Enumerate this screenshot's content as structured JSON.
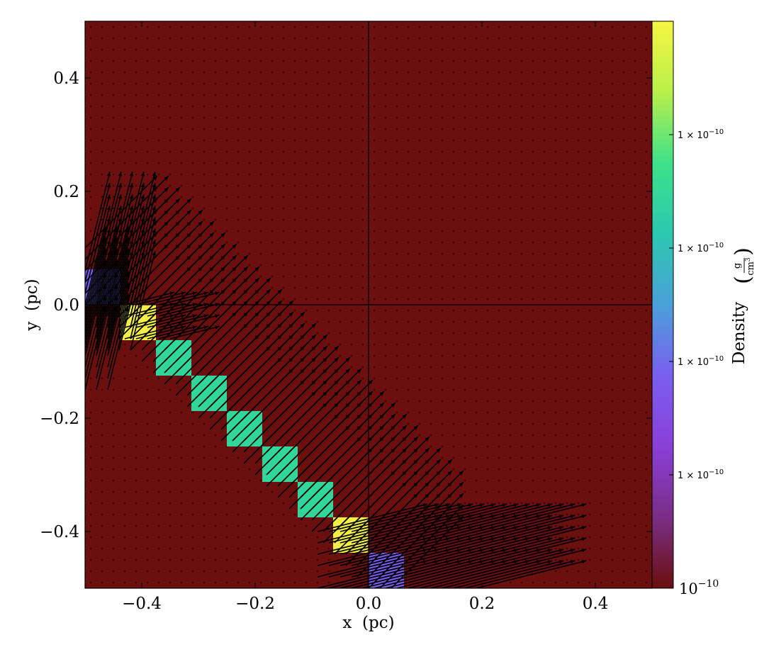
{
  "chart_data": {
    "type": "heatmap",
    "title": "",
    "xlabel": "x  (pc)",
    "ylabel": "y  (pc)",
    "xlim": [
      -0.5,
      0.5
    ],
    "ylim": [
      -0.5,
      0.5
    ],
    "x_ticks": [
      -0.4,
      -0.2,
      0.0,
      0.2,
      0.4
    ],
    "y_ticks": [
      -0.4,
      -0.2,
      0.0,
      0.2,
      0.4
    ],
    "x_tick_labels": [
      "−0.4",
      "−0.2",
      "0.0",
      "0.2",
      "0.4"
    ],
    "y_tick_labels": [
      "−0.4",
      "−0.2",
      "0.0",
      "0.2",
      "0.4"
    ],
    "grid": false,
    "crosshair_lines": [
      {
        "axis": "x",
        "value": 0.0
      },
      {
        "axis": "y",
        "value": 0.0
      }
    ],
    "background_color": "#6b0f0f",
    "colorbar": {
      "label": "Density",
      "units_numerator": "g",
      "units_denominator": "cm",
      "units_exponent": "3",
      "scale": "log",
      "min_label_base": "10",
      "min_label_exp": "−10",
      "tick_labels": [
        "1 × 10",
        "1 × 10",
        "1 × 10",
        "1 × 10"
      ],
      "tick_label_exp": "−10",
      "tick_fractions": [
        0.2,
        0.4,
        0.6,
        0.8
      ],
      "colors": [
        "#6b0f0f",
        "#7a2e86",
        "#8a3fd8",
        "#7a5ff0",
        "#4aa0d8",
        "#2cc8b0",
        "#3fe08a",
        "#b8f04a",
        "#f7f542"
      ]
    },
    "cell_size": 0.0625,
    "cells": [
      {
        "x": -0.5,
        "y": 0.0,
        "value_level": "low",
        "color": "#7b5cf0"
      },
      {
        "x": -0.4375,
        "y": -0.0625,
        "value_level": "high",
        "color": "#f4ef47"
      },
      {
        "x": -0.375,
        "y": -0.125,
        "value_level": "mid",
        "color": "#32d69c"
      },
      {
        "x": -0.3125,
        "y": -0.1875,
        "value_level": "mid",
        "color": "#32d69c"
      },
      {
        "x": -0.25,
        "y": -0.25,
        "value_level": "mid",
        "color": "#32d69c"
      },
      {
        "x": -0.1875,
        "y": -0.3125,
        "value_level": "mid",
        "color": "#32d69c"
      },
      {
        "x": -0.125,
        "y": -0.375,
        "value_level": "mid",
        "color": "#32d69c"
      },
      {
        "x": -0.0625,
        "y": -0.4375,
        "value_level": "high",
        "color": "#f4ef47"
      },
      {
        "x": 0.0,
        "y": -0.5,
        "value_level": "low",
        "color": "#7b5cf0"
      }
    ],
    "vector_field": {
      "type": "quiver",
      "color": "#000000",
      "background_dot_spacing": 0.02,
      "bands": [
        {
          "x_range": [
            -0.5,
            -0.42
          ],
          "y_range": [
            -0.08,
            0.07
          ],
          "direction": [
            0.25,
            1.0
          ],
          "length": 0.18,
          "spacing": 0.02
        },
        {
          "x_range": [
            -0.5,
            -0.45
          ],
          "y_range": [
            -0.15,
            0.0
          ],
          "direction": [
            0.25,
            1.0
          ],
          "length": 0.15,
          "spacing": 0.02
        },
        {
          "x_range": [
            -0.43,
            -0.35
          ],
          "y_range": [
            -0.06,
            0.0
          ],
          "direction": [
            1.0,
            0.25
          ],
          "length": 0.09,
          "spacing": 0.02
        },
        {
          "x_range": [
            -0.5,
            0.05
          ],
          "y_range": [
            -0.5,
            0.1
          ],
          "diagonal_band": true,
          "direction": [
            1.0,
            1.0
          ],
          "length": 0.18,
          "spacing": 0.02
        },
        {
          "x_range": [
            -0.09,
            0.2
          ],
          "y_range": [
            -0.5,
            -0.39
          ],
          "direction": [
            1.0,
            0.25
          ],
          "length": 0.2,
          "spacing": 0.02
        }
      ]
    }
  }
}
